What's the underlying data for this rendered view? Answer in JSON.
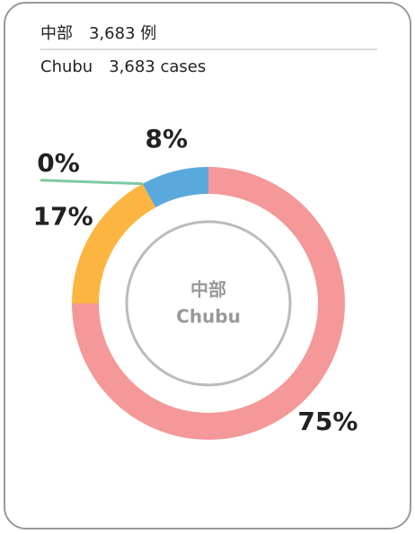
{
  "header": {
    "line1": "中部　3,683 例",
    "line2": "Chubu　3,683 cases"
  },
  "chart_data": {
    "type": "pie",
    "center_label": [
      "中部",
      "Chubu"
    ],
    "values": [
      75,
      17,
      0,
      8
    ],
    "value_labels": [
      "75%",
      "17%",
      "0%",
      "8%"
    ],
    "colors": [
      "#f4989a",
      "#fbb540",
      "#7dc9a0",
      "#5aa9dc"
    ]
  }
}
